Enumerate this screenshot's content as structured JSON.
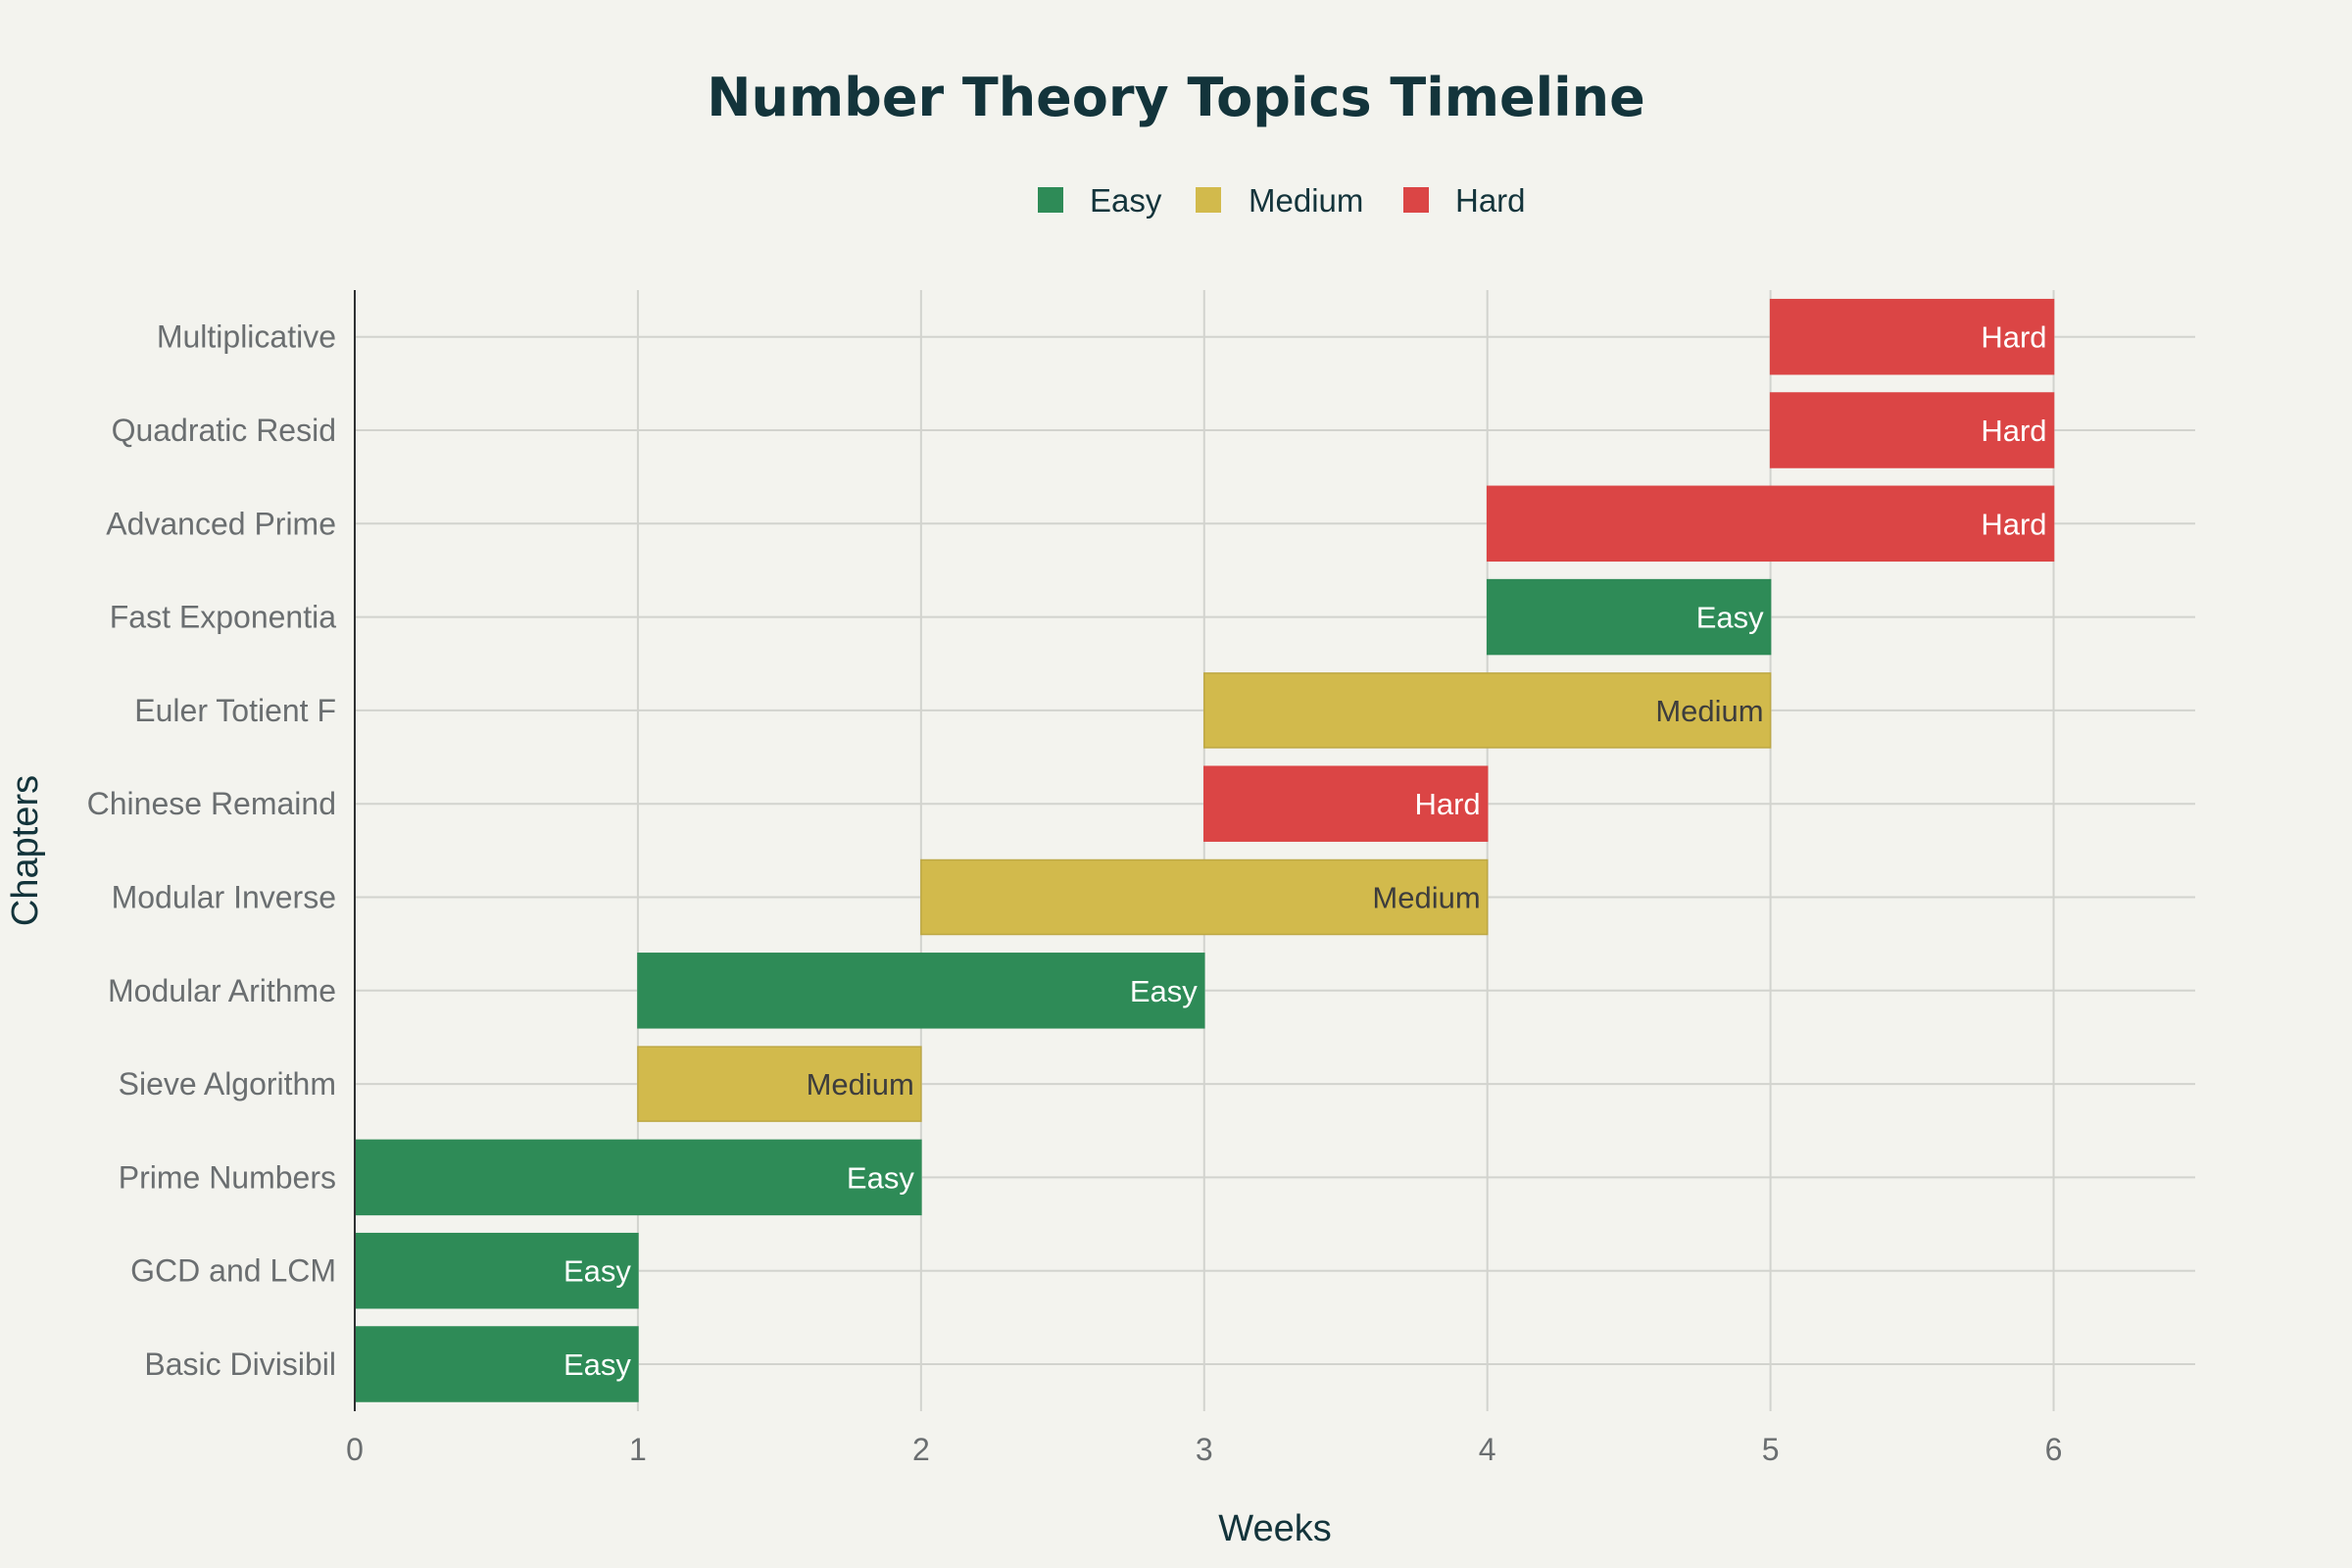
{
  "chart_data": {
    "type": "bar",
    "orientation": "horizontal-timeline",
    "title": "Number Theory Topics Timeline",
    "xlabel": "Weeks",
    "ylabel": "Chapters",
    "xlim": [
      0,
      6.5
    ],
    "xticks": [
      0,
      1,
      2,
      3,
      4,
      5,
      6
    ],
    "grid": true,
    "legend": {
      "position": "top-center",
      "entries": [
        {
          "name": "Easy",
          "color": "#2e8b57"
        },
        {
          "name": "Medium",
          "color": "#d2ba4c"
        },
        {
          "name": "Hard",
          "color": "#db4545"
        }
      ]
    },
    "bars": [
      {
        "chapter": "Basic Divisibil",
        "start": 0,
        "end": 1,
        "difficulty": "Easy"
      },
      {
        "chapter": "GCD and LCM",
        "start": 0,
        "end": 1,
        "difficulty": "Easy"
      },
      {
        "chapter": "Prime Numbers",
        "start": 0,
        "end": 2,
        "difficulty": "Easy"
      },
      {
        "chapter": "Sieve Algorithm",
        "start": 1,
        "end": 2,
        "difficulty": "Medium"
      },
      {
        "chapter": "Modular Arithme",
        "start": 1,
        "end": 3,
        "difficulty": "Easy"
      },
      {
        "chapter": "Modular Inverse",
        "start": 2,
        "end": 4,
        "difficulty": "Medium"
      },
      {
        "chapter": "Chinese Remaind",
        "start": 3,
        "end": 4,
        "difficulty": "Hard"
      },
      {
        "chapter": "Euler Totient F",
        "start": 3,
        "end": 5,
        "difficulty": "Medium"
      },
      {
        "chapter": "Fast Exponentia",
        "start": 4,
        "end": 5,
        "difficulty": "Easy"
      },
      {
        "chapter": "Advanced Prime",
        "start": 4,
        "end": 6,
        "difficulty": "Hard"
      },
      {
        "chapter": "Quadratic Resid",
        "start": 5,
        "end": 6,
        "difficulty": "Hard"
      },
      {
        "chapter": "Multiplicative",
        "start": 5,
        "end": 6,
        "difficulty": "Hard"
      }
    ],
    "label_colors": {
      "Easy": "#ffffff",
      "Medium": "#3d3d3d",
      "Hard": "#ffffff"
    }
  }
}
